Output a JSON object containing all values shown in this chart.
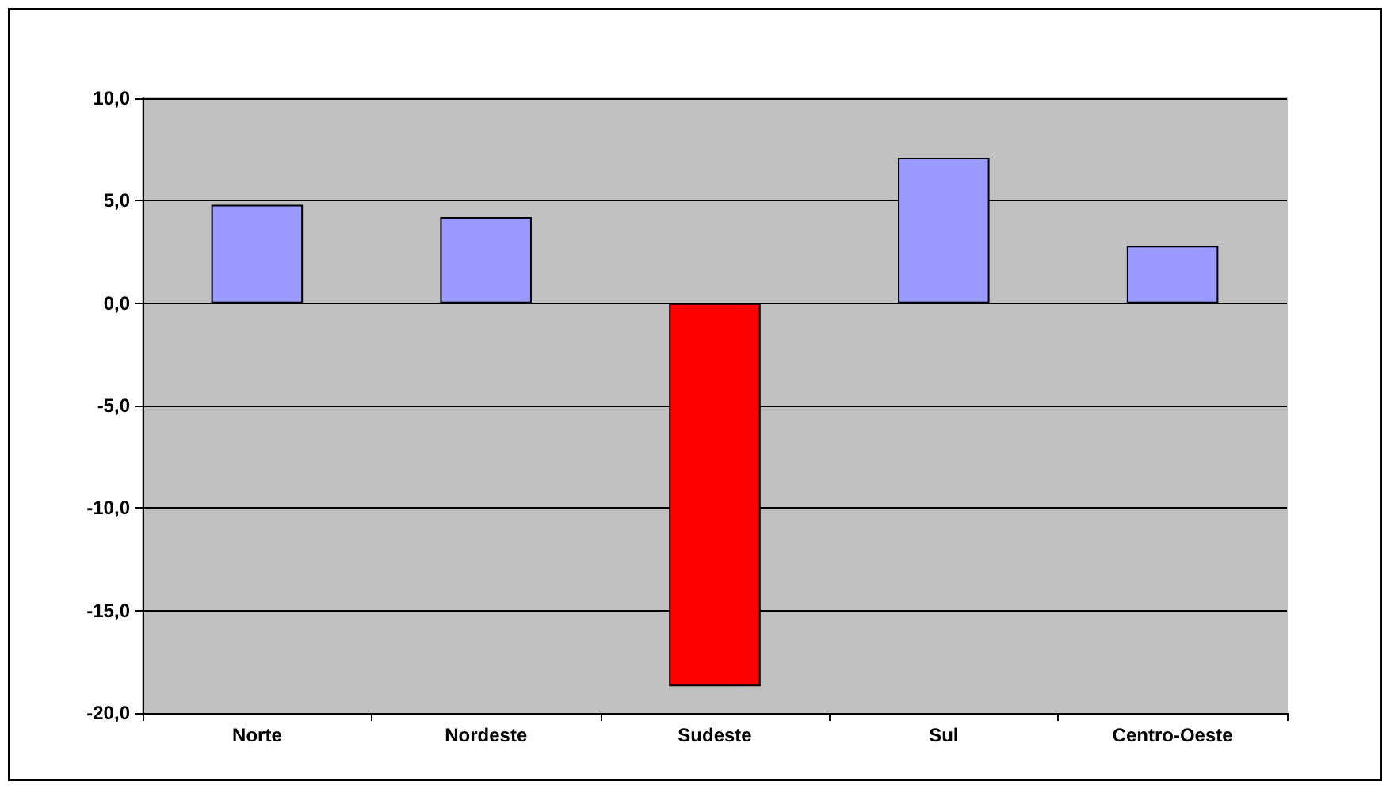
{
  "chart_data": {
    "type": "bar",
    "categories": [
      "Norte",
      "Nordeste",
      "Sudeste",
      "Sul",
      "Centro-Oeste"
    ],
    "values": [
      4.8,
      4.2,
      -18.7,
      7.1,
      2.8
    ],
    "colors": [
      "#9999ff",
      "#9999ff",
      "#ff0000",
      "#9999ff",
      "#9999ff"
    ],
    "ylim": [
      -20,
      10
    ],
    "yticks": [
      {
        "value": -20,
        "label": "-20,0"
      },
      {
        "value": -15,
        "label": "-15,0"
      },
      {
        "value": -10,
        "label": "-10,0"
      },
      {
        "value": -5,
        "label": "-5,0"
      },
      {
        "value": 0,
        "label": "0,0"
      },
      {
        "value": 5,
        "label": "5,0"
      },
      {
        "value": 10,
        "label": "10,0"
      }
    ],
    "grid": "y"
  }
}
